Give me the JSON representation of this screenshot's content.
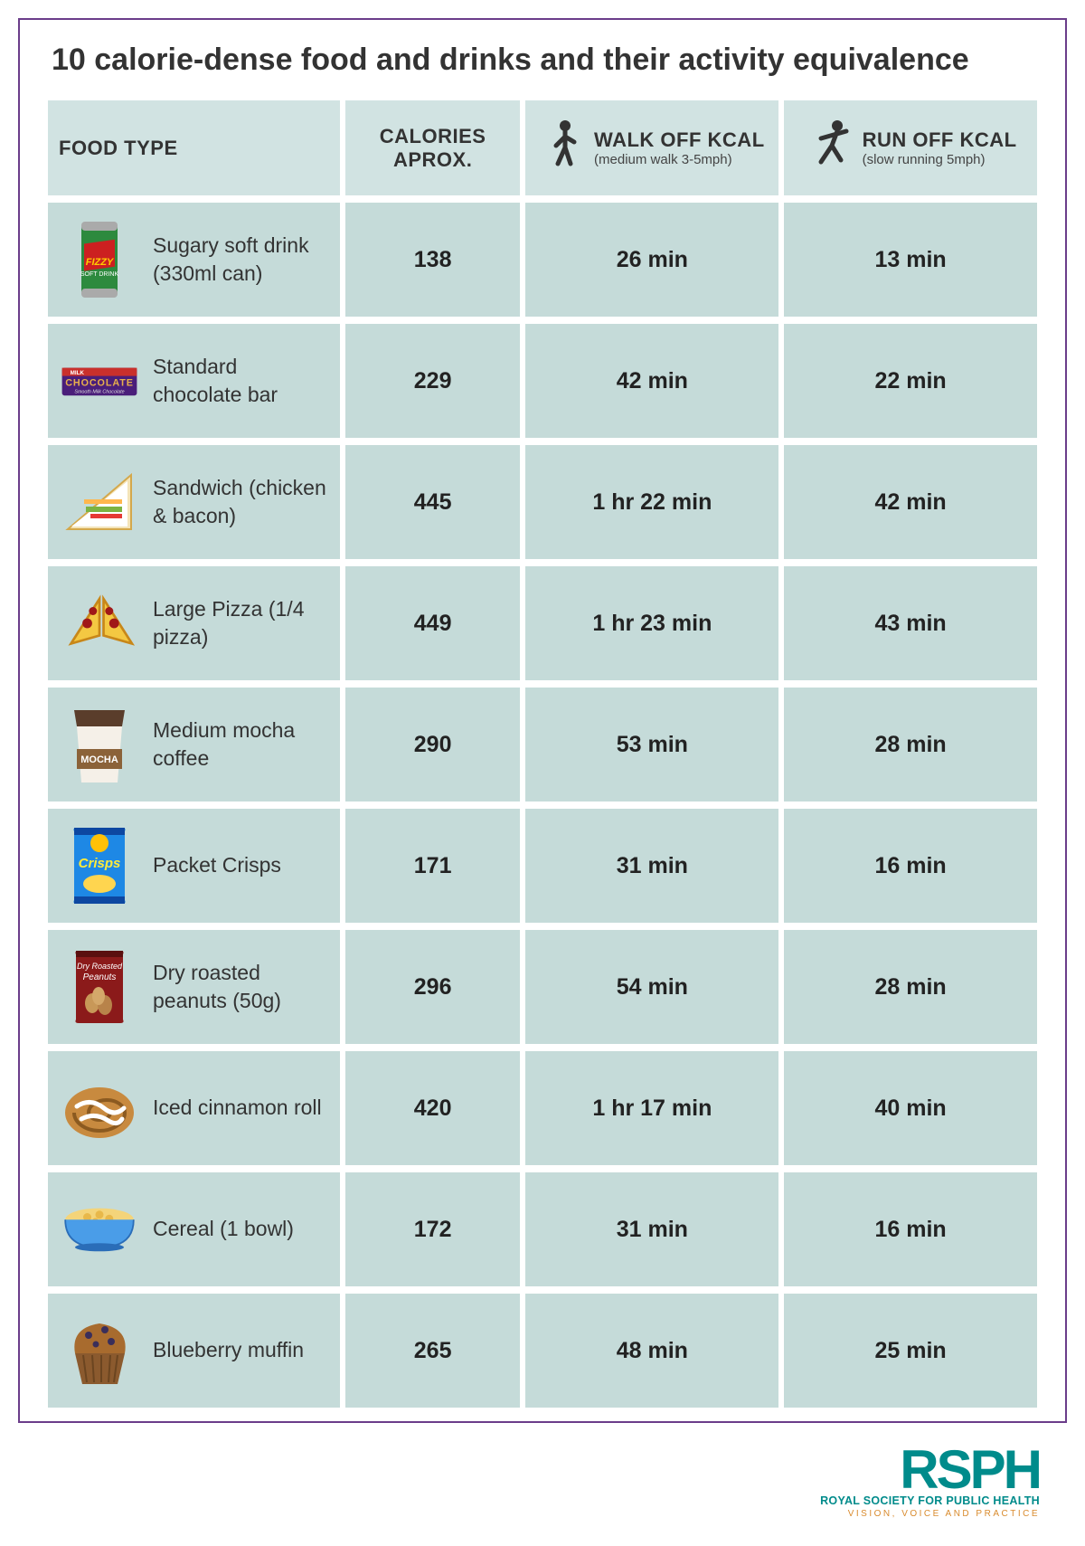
{
  "title": "10 calorie-dense food and drinks and their activity equivalence",
  "columns": {
    "food": "FOOD TYPE",
    "calories": "CALORIES APROX.",
    "walk": "WALK OFF KCAL",
    "walk_sub": "(medium walk 3-5mph)",
    "run": "RUN OFF KCAL",
    "run_sub": "(slow running 5mph)"
  },
  "colors": {
    "border": "#6b3d8a",
    "header_bg": "#d1e3e2",
    "row_bg": "#c5dbd9",
    "text": "#333333",
    "logo_teal": "#008b8b",
    "logo_orange": "#d98b2e"
  },
  "rows": [
    {
      "id": "soda",
      "name": "Sugary soft drink (330ml can)",
      "calories": "138",
      "walk": "26 min",
      "run": "13 min"
    },
    {
      "id": "chocolate",
      "name": "Standard chocolate bar",
      "calories": "229",
      "walk": "42 min",
      "run": "22 min"
    },
    {
      "id": "sandwich",
      "name": "Sandwich (chicken & bacon)",
      "calories": "445",
      "walk": "1 hr 22 min",
      "run": "42 min"
    },
    {
      "id": "pizza",
      "name": "Large Pizza (1/4 pizza)",
      "calories": "449",
      "walk": "1 hr 23 min",
      "run": "43 min"
    },
    {
      "id": "mocha",
      "name": "Medium mocha coffee",
      "calories": "290",
      "walk": "53 min",
      "run": "28 min"
    },
    {
      "id": "crisps",
      "name": "Packet Crisps",
      "calories": "171",
      "walk": "31 min",
      "run": "16 min"
    },
    {
      "id": "peanuts",
      "name": "Dry roasted peanuts (50g)",
      "calories": "296",
      "walk": "54 min",
      "run": "28 min"
    },
    {
      "id": "cinnamon",
      "name": "Iced cinnamon roll",
      "calories": "420",
      "walk": "1 hr 17 min",
      "run": "40 min"
    },
    {
      "id": "cereal",
      "name": "Cereal (1 bowl)",
      "calories": "172",
      "walk": "31 min",
      "run": "16 min"
    },
    {
      "id": "muffin",
      "name": "Blueberry muffin",
      "calories": "265",
      "walk": "48 min",
      "run": "25 min"
    }
  ],
  "logo": {
    "main": "RSPH",
    "sub1": "ROYAL SOCIETY FOR PUBLIC HEALTH",
    "sub2": "VISION, VOICE AND PRACTICE"
  }
}
